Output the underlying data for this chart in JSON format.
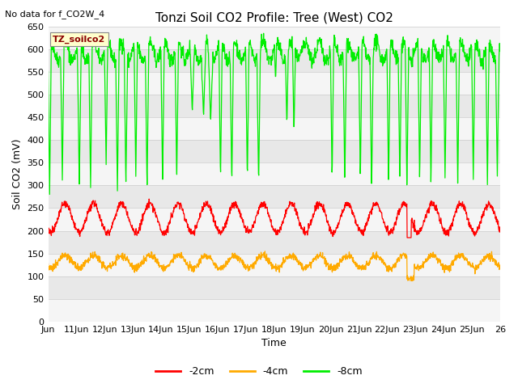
{
  "title": "Tonzi Soil CO2 Profile: Tree (West) CO2",
  "no_data_text": "No data for f_CO2W_4",
  "ylabel": "Soil CO2 (mV)",
  "xlabel": "Time",
  "ylim": [
    0,
    650
  ],
  "yticks": [
    0,
    50,
    100,
    150,
    200,
    250,
    300,
    350,
    400,
    450,
    500,
    550,
    600,
    650
  ],
  "xtick_labels": [
    "Jun",
    "11Jun",
    "12Jun",
    "13Jun",
    "14Jun",
    "15Jun",
    "16Jun",
    "17Jun",
    "18Jun",
    "19Jun",
    "20Jun",
    "21Jun",
    "22Jun",
    "23Jun",
    "24Jun",
    "25Jun",
    "26"
  ],
  "legend_entries": [
    "-2cm",
    "-4cm",
    "-8cm"
  ],
  "legend_colors": [
    "#ff0000",
    "#ffaa00",
    "#00ee00"
  ],
  "line_2cm_color": "#ff0000",
  "line_4cm_color": "#ffaa00",
  "line_8cm_color": "#00ee00",
  "plot_bg_color": "#e8e8e8",
  "legend_box_color": "#ffffcc",
  "legend_box_text_color": "#8b0000",
  "title_fontsize": 11,
  "label_fontsize": 9,
  "tick_fontsize": 8
}
